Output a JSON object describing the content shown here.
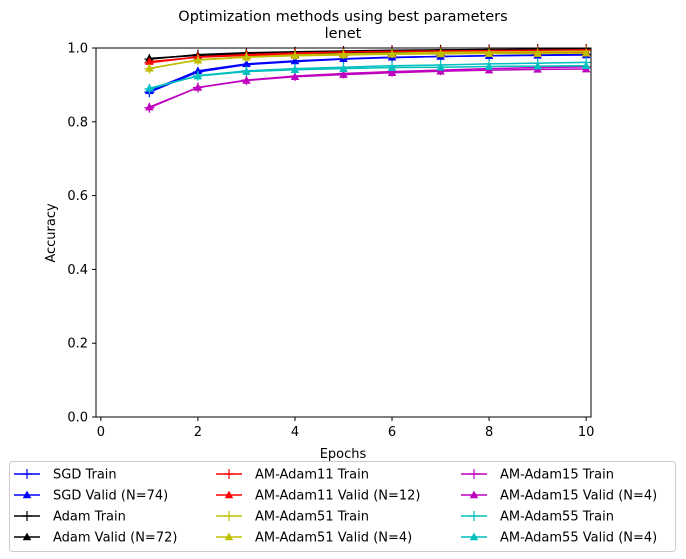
{
  "chart_data": {
    "type": "line",
    "title": "Optimization methods using best parameters",
    "subtitle": "lenet",
    "xlabel": "Epochs",
    "ylabel": "Accuracy",
    "xlim": [
      -0.1,
      10.1
    ],
    "ylim": [
      0.0,
      1.0
    ],
    "xticks": [
      0,
      2,
      4,
      6,
      8,
      10
    ],
    "yticks": [
      0.0,
      0.2,
      0.4,
      0.6,
      0.8,
      1.0
    ],
    "xtick_labels": [
      "0",
      "2",
      "4",
      "6",
      "8",
      "10"
    ],
    "ytick_labels": [
      "0.0",
      "0.2",
      "0.4",
      "0.6",
      "0.8",
      "1.0"
    ],
    "grid": false,
    "legend_placement": "below",
    "x": [
      1,
      2,
      3,
      4,
      5,
      6,
      7,
      8,
      9,
      10
    ],
    "series": [
      {
        "name": "SGD Train",
        "color": "#0000ff",
        "marker": "plus",
        "values": [
          0.88,
          0.935,
          0.955,
          0.963,
          0.97,
          0.974,
          0.977,
          0.979,
          0.981,
          0.983
        ]
      },
      {
        "name": "SGD Valid (N=74)",
        "color": "#0000ff",
        "marker": "triangle",
        "values": [
          0.884,
          0.938,
          0.957,
          0.965,
          0.971,
          0.975,
          0.977,
          0.979,
          0.98,
          0.981
        ]
      },
      {
        "name": "Adam Train",
        "color": "#000000",
        "marker": "plus",
        "values": [
          0.97,
          0.982,
          0.987,
          0.99,
          0.992,
          0.994,
          0.995,
          0.996,
          0.997,
          0.997
        ]
      },
      {
        "name": "Adam Valid (N=72)",
        "color": "#000000",
        "marker": "triangle",
        "values": [
          0.972,
          0.98,
          0.984,
          0.986,
          0.987,
          0.988,
          0.988,
          0.989,
          0.989,
          0.989
        ]
      },
      {
        "name": "AM-Adam11 Train",
        "color": "#ff0000",
        "marker": "plus",
        "values": [
          0.96,
          0.976,
          0.982,
          0.986,
          0.989,
          0.991,
          0.992,
          0.993,
          0.994,
          0.995
        ]
      },
      {
        "name": "AM-Adam11 Valid (N=12)",
        "color": "#ff0000",
        "marker": "triangle",
        "values": [
          0.963,
          0.975,
          0.98,
          0.982,
          0.984,
          0.985,
          0.986,
          0.986,
          0.987,
          0.987
        ]
      },
      {
        "name": "AM-Adam51 Train",
        "color": "#bfbf00",
        "marker": "plus",
        "values": [
          0.944,
          0.968,
          0.976,
          0.981,
          0.984,
          0.986,
          0.988,
          0.989,
          0.99,
          0.991
        ]
      },
      {
        "name": "AM-Adam51 Valid (N=4)",
        "color": "#bfbf00",
        "marker": "triangle",
        "values": [
          0.945,
          0.967,
          0.975,
          0.979,
          0.981,
          0.983,
          0.984,
          0.985,
          0.985,
          0.986
        ]
      },
      {
        "name": "AM-Adam15 Train",
        "color": "#bf00bf",
        "marker": "plus",
        "values": [
          0.838,
          0.893,
          0.913,
          0.924,
          0.931,
          0.936,
          0.94,
          0.944,
          0.947,
          0.949
        ]
      },
      {
        "name": "AM-Adam15 Valid (N=4)",
        "color": "#bf00bf",
        "marker": "triangle",
        "values": [
          0.84,
          0.893,
          0.912,
          0.922,
          0.928,
          0.933,
          0.937,
          0.94,
          0.942,
          0.943
        ]
      },
      {
        "name": "AM-Adam55 Train",
        "color": "#00bfbf",
        "marker": "plus",
        "values": [
          0.889,
          0.925,
          0.938,
          0.944,
          0.948,
          0.952,
          0.954,
          0.957,
          0.959,
          0.961
        ]
      },
      {
        "name": "AM-Adam55 Valid (N=4)",
        "color": "#00bfbf",
        "marker": "triangle",
        "values": [
          0.891,
          0.924,
          0.936,
          0.941,
          0.944,
          0.947,
          0.948,
          0.95,
          0.951,
          0.952
        ]
      }
    ]
  }
}
